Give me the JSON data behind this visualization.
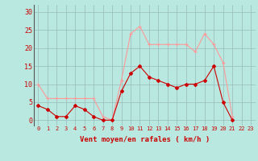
{
  "hours": [
    0,
    1,
    2,
    3,
    4,
    5,
    6,
    7,
    8,
    9,
    10,
    11,
    12,
    13,
    14,
    15,
    16,
    17,
    18,
    19,
    20,
    21,
    22,
    23
  ],
  "vent_moyen": [
    4,
    3,
    1,
    1,
    4,
    3,
    1,
    0,
    0,
    8,
    13,
    15,
    12,
    11,
    10,
    9,
    10,
    10,
    11,
    15,
    5,
    0,
    null,
    null
  ],
  "rafales": [
    10,
    6,
    6,
    6,
    6,
    6,
    6,
    1,
    0,
    11,
    24,
    26,
    21,
    21,
    21,
    21,
    21,
    19,
    24,
    21,
    16,
    1,
    null,
    null
  ],
  "color_moyen": "#cc0000",
  "color_rafales": "#ff9999",
  "bg_color": "#b8e8e0",
  "grid_color": "#99bbbb",
  "xlabel": "Vent moyen/en rafales ( km/h )",
  "xlabel_color": "#cc0000",
  "ytick_labels": [
    "0",
    "5",
    "10",
    "15",
    "20",
    "25",
    "30"
  ],
  "ytick_vals": [
    0,
    5,
    10,
    15,
    20,
    25,
    30
  ],
  "ylim": [
    -1.5,
    32
  ],
  "xlim": [
    -0.5,
    23.5
  ],
  "figsize": [
    3.2,
    2.0
  ],
  "dpi": 100
}
